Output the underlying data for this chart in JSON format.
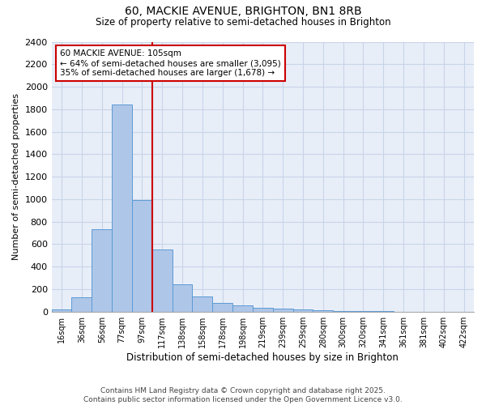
{
  "title_line1": "60, MACKIE AVENUE, BRIGHTON, BN1 8RB",
  "title_line2": "Size of property relative to semi-detached houses in Brighton",
  "xlabel": "Distribution of semi-detached houses by size in Brighton",
  "ylabel": "Number of semi-detached properties",
  "bar_labels": [
    "16sqm",
    "36sqm",
    "56sqm",
    "77sqm",
    "97sqm",
    "117sqm",
    "138sqm",
    "158sqm",
    "178sqm",
    "198sqm",
    "219sqm",
    "239sqm",
    "259sqm",
    "280sqm",
    "300sqm",
    "320sqm",
    "341sqm",
    "361sqm",
    "381sqm",
    "402sqm",
    "422sqm"
  ],
  "bar_values": [
    20,
    130,
    730,
    1840,
    990,
    550,
    245,
    135,
    75,
    55,
    35,
    25,
    20,
    12,
    7,
    3,
    2,
    1,
    0,
    0,
    0
  ],
  "bar_color": "#aec6e8",
  "bar_edge_color": "#5b9bd5",
  "vline_color": "#cc0000",
  "annotation_text": "60 MACKIE AVENUE: 105sqm\n← 64% of semi-detached houses are smaller (3,095)\n35% of semi-detached houses are larger (1,678) →",
  "annotation_box_color": "#ffffff",
  "annotation_box_edge": "#cc0000",
  "ylim": [
    0,
    2400
  ],
  "yticks": [
    0,
    200,
    400,
    600,
    800,
    1000,
    1200,
    1400,
    1600,
    1800,
    2000,
    2200,
    2400
  ],
  "grid_color": "#c8d4e8",
  "bg_color": "#e8eef8",
  "footer_text": "Contains HM Land Registry data © Crown copyright and database right 2025.\nContains public sector information licensed under the Open Government Licence v3.0."
}
